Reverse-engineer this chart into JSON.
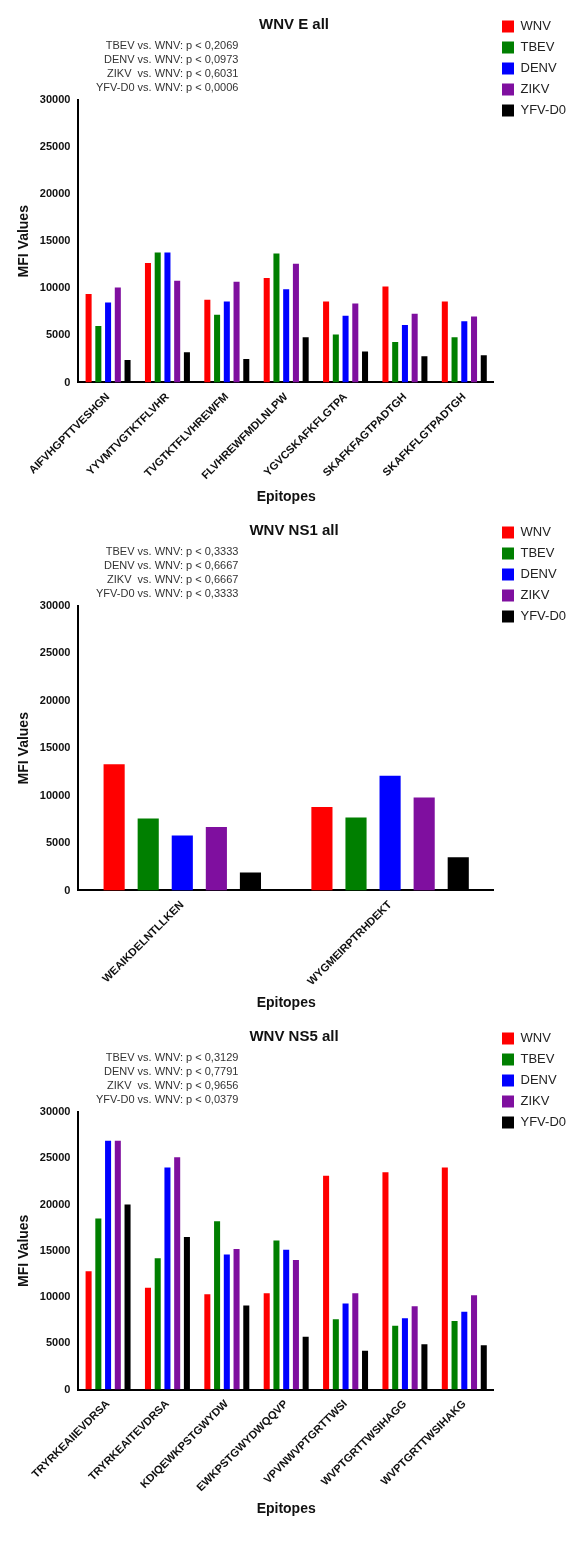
{
  "chart_data": [
    {
      "type": "bar",
      "title": "WNV E all",
      "xlabel": "Epitopes",
      "ylabel": "MFI Values",
      "categories": [
        "AIFVHGPTTVESHGN",
        "YYVMTVGTKTFLVHR",
        "TVGTKTFLVHREWFM",
        "FLVHREWFMDLNLPW",
        "YGVCSKAFKFLGTPA",
        "SKAFKFAGTPADTGH",
        "SKAFKFLGTPADTGH"
      ],
      "series": [
        {
          "name": "WNV",
          "color": "#ff0000",
          "values": [
            9400,
            12700,
            8800,
            11100,
            8600,
            10200,
            8600
          ]
        },
        {
          "name": "TBEV",
          "color": "#007f00",
          "values": [
            6000,
            13800,
            7200,
            13700,
            5100,
            4300,
            4800
          ]
        },
        {
          "name": "DENV",
          "color": "#0000ff",
          "values": [
            8500,
            13800,
            8600,
            9900,
            7100,
            6100,
            6500
          ]
        },
        {
          "name": "ZIKV",
          "color": "#7f0f9f",
          "values": [
            10100,
            10800,
            10700,
            12600,
            8400,
            7300,
            7000
          ]
        },
        {
          "name": "YFV-D0",
          "color": "#000000",
          "values": [
            2400,
            3200,
            2500,
            4800,
            3300,
            2800,
            2900
          ]
        }
      ],
      "ylim": [
        0,
        30000
      ],
      "yticks": [
        0,
        5000,
        10000,
        15000,
        20000,
        25000,
        30000
      ],
      "grid": false,
      "legend": "top right",
      "annotations": [
        "TBEV vs. WNV: p < 0,2069",
        "DENV vs. WNV: p < 0,0973",
        "ZIKV  vs. WNV: p < 0,6031",
        "YFV-D0 vs. WNV: p < 0,0006"
      ]
    },
    {
      "type": "bar",
      "title": "WNV NS1 all",
      "xlabel": "Epitopes",
      "ylabel": "MFI Values",
      "categories": [
        "WEAIKDELNTLLKEN",
        "WYGMEIRPTRHDEKT"
      ],
      "series": [
        {
          "name": "WNV",
          "color": "#ff0000",
          "values": [
            13300,
            8800
          ]
        },
        {
          "name": "TBEV",
          "color": "#007f00",
          "values": [
            7600,
            7700
          ]
        },
        {
          "name": "DENV",
          "color": "#0000ff",
          "values": [
            5800,
            12100
          ]
        },
        {
          "name": "ZIKV",
          "color": "#7f0f9f",
          "values": [
            6700,
            9800
          ]
        },
        {
          "name": "YFV-D0",
          "color": "#000000",
          "values": [
            1900,
            3500
          ]
        }
      ],
      "ylim": [
        0,
        30000
      ],
      "yticks": [
        0,
        5000,
        10000,
        15000,
        20000,
        25000,
        30000
      ],
      "grid": false,
      "legend": "top right",
      "annotations": [
        "TBEV vs. WNV: p < 0,3333",
        "DENV vs. WNV: p < 0,6667",
        "ZIKV  vs. WNV: p < 0,6667",
        "YFV-D0 vs. WNV: p < 0,3333"
      ]
    },
    {
      "type": "bar",
      "title": "WNV NS5 all",
      "xlabel": "Epitopes",
      "ylabel": "MFI Values",
      "categories": [
        "TRYRKEAIIEVDRSA",
        "TRYRKEAITEVDRSA",
        "KDIQEWKPSTGWYDW",
        "EWKPSTGWYDWQQVP",
        "VPVNWVPTGRTTWSI",
        "WVPTGRTTWSIHAGG",
        "WVPTGRTTWSIHAKG"
      ],
      "series": [
        {
          "name": "WNV",
          "color": "#ff0000",
          "values": [
            12800,
            11000,
            10300,
            10400,
            23100,
            23500,
            24000
          ]
        },
        {
          "name": "TBEV",
          "color": "#007f00",
          "values": [
            18500,
            14200,
            18200,
            16100,
            7600,
            6900,
            7400
          ]
        },
        {
          "name": "DENV",
          "color": "#0000ff",
          "values": [
            26900,
            24000,
            14600,
            15100,
            9300,
            7700,
            8400
          ]
        },
        {
          "name": "ZIKV",
          "color": "#7f0f9f",
          "values": [
            26900,
            25100,
            15200,
            14000,
            10400,
            9000,
            10200
          ]
        },
        {
          "name": "YFV-D0",
          "color": "#000000",
          "values": [
            20000,
            16500,
            9100,
            5700,
            4200,
            4900,
            4800
          ]
        }
      ],
      "ylim": [
        0,
        30000
      ],
      "yticks": [
        0,
        5000,
        10000,
        15000,
        20000,
        25000,
        30000
      ],
      "grid": false,
      "legend": "top right",
      "annotations": [
        "TBEV vs. WNV: p < 0,3129",
        "DENV vs. WNV: p < 0,7791",
        "ZIKV  vs. WNV: p < 0,9656",
        "YFV-D0 vs. WNV: p < 0,0379"
      ]
    }
  ]
}
